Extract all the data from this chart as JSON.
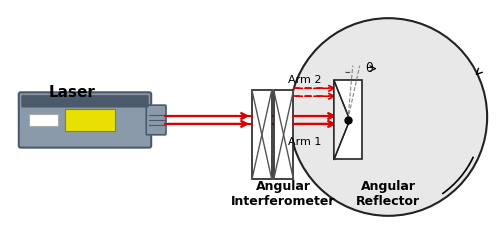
{
  "bg_color": "#ffffff",
  "circle_color": "#e8e8e8",
  "circle_edge": "#222222",
  "laser_body_color": "#8a9aaa",
  "laser_dark": "#4a5a6a",
  "laser_yellow": "#e8e000",
  "laser_white_rect": "#ffffff",
  "interferometer_color": "#ffffff",
  "interferometer_edge": "#222222",
  "reflector_color": "#ffffff",
  "reflector_edge": "#222222",
  "beam_color": "#dd0000",
  "dashed_color": "#888888",
  "label_laser": "Laser",
  "label_interferometer": "Angular\nInterferometer",
  "label_reflector": "Angular\nReflector",
  "label_arm1": "Arm 1",
  "label_arm2": "Arm 2",
  "label_theta": "θ",
  "font_size_label": 9,
  "font_size_arm": 8,
  "font_size_theta": 9
}
